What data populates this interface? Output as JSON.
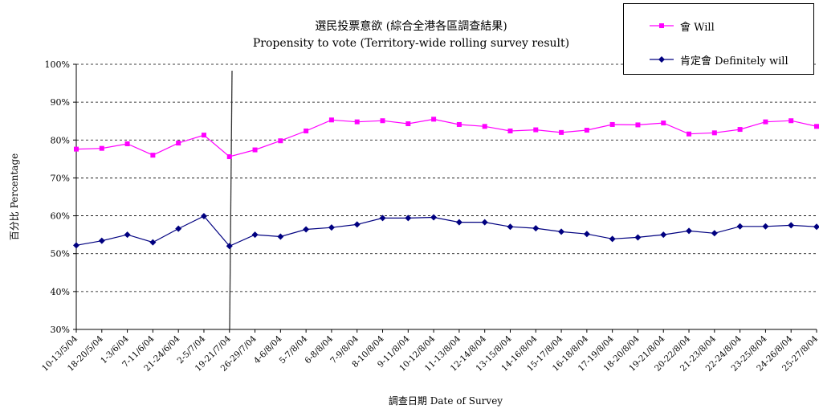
{
  "chart_data": {
    "type": "line",
    "title": "選民投票意欲 (綜合全港各區調查結果)",
    "subtitle": "Propensity to vote (Territory-wide rolling survey result)",
    "xlabel": "調查日期 Date of Survey",
    "ylabel": "百分比 Percentage",
    "ylim": [
      30,
      100
    ],
    "yticks": [
      "30%",
      "40%",
      "50%",
      "60%",
      "70%",
      "80%",
      "90%",
      "100%"
    ],
    "ytick_values": [
      30,
      40,
      50,
      60,
      70,
      80,
      90,
      100
    ],
    "grid": true,
    "legend_position": "top-right",
    "categories": [
      "10-13/5/04",
      "18-20/5/04",
      "1-3/6/04",
      "7-11/6/04",
      "21-24/6/04",
      "2-5/7/04",
      "19-21/7/04",
      "26-29/7/04",
      "4-6/8/04",
      "5-7/8/04",
      "6-8/8/04",
      "7-9/8/04",
      "8-10/8/04",
      "9-11/8/04",
      "10-12/8/04",
      "11-13/8/04",
      "12-14/8/04",
      "13-15/8/04",
      "14-16/8/04",
      "15-17/8/04",
      "16-18/8/04",
      "17-19/8/04",
      "18-20/8/04",
      "19-21/8/04",
      "20-22/8/04",
      "21-23/8/04",
      "22-24/8/04",
      "23-25/8/04",
      "24-26/8/04",
      "25-27/8/04"
    ],
    "series": [
      {
        "name": "會 Will",
        "color": "#ff00ff",
        "marker": "square",
        "values": [
          77.6,
          77.8,
          79.0,
          76.0,
          79.2,
          81.3,
          75.6,
          77.4,
          79.8,
          82.4,
          85.3,
          84.8,
          85.1,
          84.3,
          85.5,
          84.1,
          83.6,
          82.4,
          82.7,
          82.0,
          82.6,
          84.1,
          84.0,
          84.5,
          81.6,
          81.9,
          82.8,
          84.8,
          85.1,
          83.6
        ]
      },
      {
        "name": "肯定會 Definitely will",
        "color": "#000080",
        "marker": "diamond",
        "values": [
          52.2,
          53.4,
          55.0,
          53.0,
          56.6,
          59.9,
          52.0,
          55.0,
          54.5,
          56.4,
          56.9,
          57.7,
          59.4,
          59.4,
          59.6,
          58.3,
          58.3,
          57.1,
          56.7,
          55.8,
          55.2,
          53.9,
          54.3,
          55.0,
          56.0,
          55.4,
          57.2,
          57.2,
          57.5,
          57.1
        ]
      }
    ]
  }
}
